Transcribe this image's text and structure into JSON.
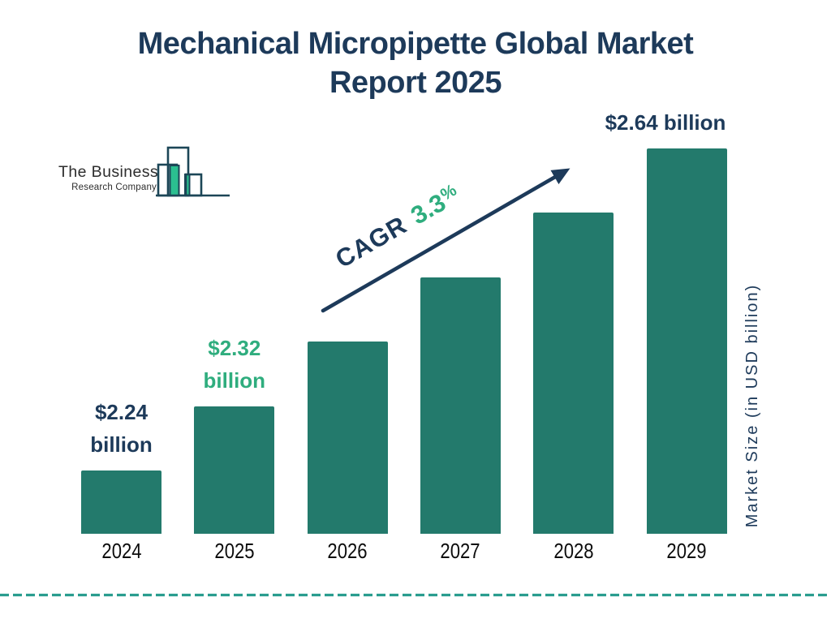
{
  "title": {
    "line1": "Mechanical Micropipette Global Market",
    "line2": "Report 2025"
  },
  "logo": {
    "name_line1": "The Business",
    "name_line2": "Research Company"
  },
  "cagr": {
    "label": "CAGR",
    "value": "3.3",
    "unit": "%"
  },
  "y_axis_label": "Market Size (in USD billion)",
  "colors": {
    "navy": "#1d3a5a",
    "green": "#2fad7e",
    "bar": "#237a6c",
    "dash": "#2a9d8f",
    "logo_green": "#2bbf90",
    "logo_outline": "#1c4657",
    "logo_text": "#2d2d2d",
    "year_text": "#0c0c0c"
  },
  "chart_data": {
    "type": "bar",
    "title": "Mechanical Micropipette Global Market Report 2025",
    "categories": [
      "2024",
      "2025",
      "2026",
      "2027",
      "2028",
      "2029"
    ],
    "values": [
      2.24,
      2.32,
      2.4,
      2.48,
      2.56,
      2.64
    ],
    "series_unit": "USD billion",
    "xlabel": "",
    "ylabel": "Market Size (in USD billion)",
    "cagr_annotation": "CAGR 3.3%",
    "grid": false,
    "legend": "none",
    "baseline_note": "bars drawn from a non-zero stylized baseline",
    "value_labels": [
      {
        "index": 0,
        "lines": [
          "$2.24",
          "billion"
        ],
        "color": "navy"
      },
      {
        "index": 1,
        "lines": [
          "$2.32",
          "billion"
        ],
        "color": "green"
      },
      {
        "index": 5,
        "lines": [
          "$2.64 billion"
        ],
        "color": "navy"
      }
    ]
  }
}
